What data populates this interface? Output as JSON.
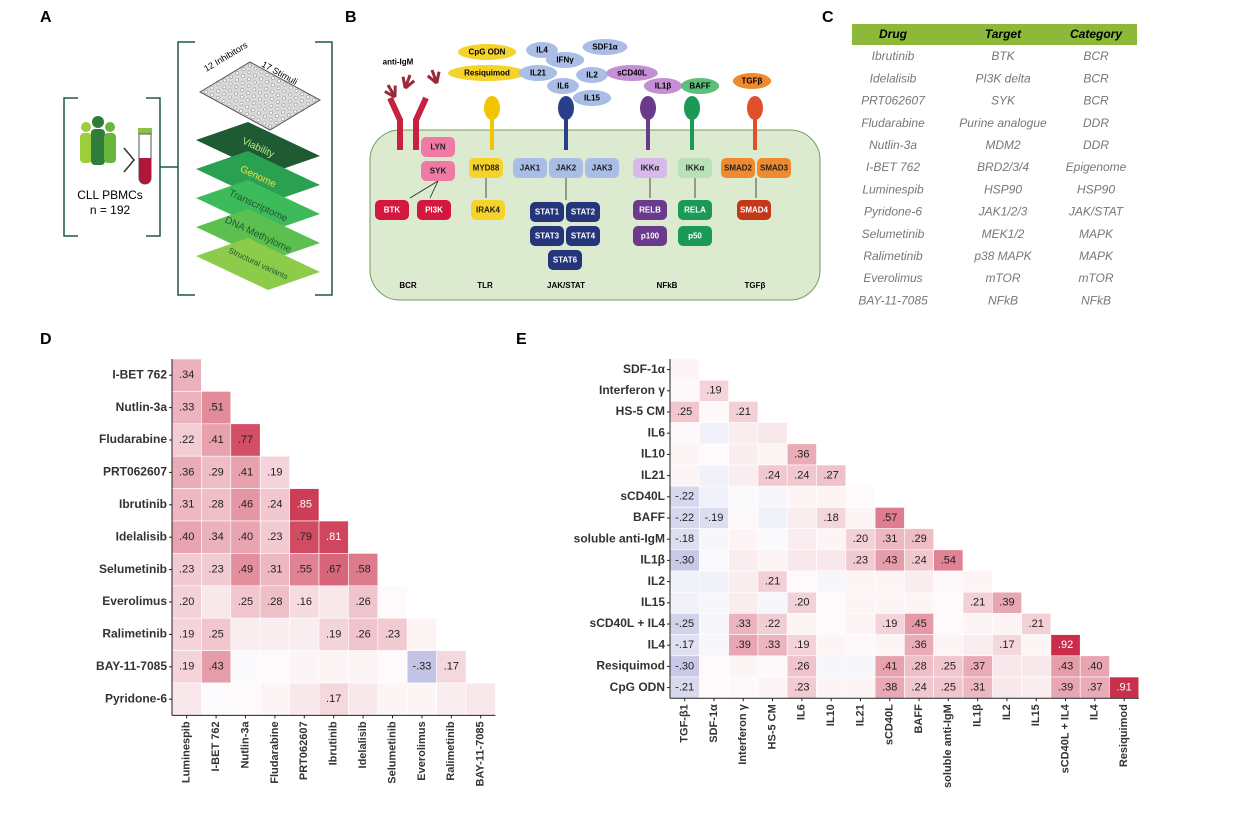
{
  "panel_a": {
    "label": "A",
    "plate_labels": [
      "12 Inhibitors",
      "17 Stimuli"
    ],
    "layers": [
      "Viability",
      "Genome",
      "Transcriptome",
      "DNA Methylome",
      "Structural variants"
    ],
    "cohort": [
      "CLL PBMCs",
      "n = 192"
    ]
  },
  "panel_b": {
    "label": "B",
    "ligands": [
      "anti-IgM",
      "CpG ODN",
      "Resiquimod",
      "IL4",
      "IFNγ",
      "SDF1α",
      "IL21",
      "IL2",
      "IL6",
      "IL15",
      "sCD40L",
      "IL1β",
      "BAFF",
      "TGFβ"
    ],
    "nodes": [
      "LYN",
      "SYK",
      "BTK",
      "PI3K",
      "MYD88",
      "IRAK4",
      "JAK1",
      "JAK2",
      "JAK3",
      "STAT1",
      "STAT2",
      "STAT3",
      "STAT4",
      "STAT6",
      "IKKα",
      "IKKα",
      "RELB",
      "p100",
      "RELA",
      "p50",
      "SMAD2",
      "SMAD3",
      "SMAD4"
    ],
    "pathways": [
      "BCR",
      "TLR",
      "JAK/STAT",
      "NFkB",
      "TGFβ"
    ]
  },
  "panel_c": {
    "label": "C",
    "header": [
      "Drug",
      "Target",
      "Category"
    ],
    "rows": [
      [
        "Ibrutinib",
        "BTK",
        "BCR"
      ],
      [
        "Idelalisib",
        "PI3K delta",
        "BCR"
      ],
      [
        "PRT062607",
        "SYK",
        "BCR"
      ],
      [
        "Fludarabine",
        "Purine analogue",
        "DDR"
      ],
      [
        "Nutlin-3a",
        "MDM2",
        "DDR"
      ],
      [
        "I-BET 762",
        "BRD2/3/4",
        "Epigenome"
      ],
      [
        "Luminespib",
        "HSP90",
        "HSP90"
      ],
      [
        "Pyridone-6",
        "JAK1/2/3",
        "JAK/STAT"
      ],
      [
        "Selumetinib",
        "MEK1/2",
        "MAPK"
      ],
      [
        "Ralimetinib",
        "p38 MAPK",
        "MAPK"
      ],
      [
        "Everolimus",
        "mTOR",
        "mTOR"
      ],
      [
        "BAY-11-7085",
        "NFkB",
        "NFkB"
      ]
    ]
  },
  "chart_data": [
    {
      "type": "heatmap",
      "panel": "D",
      "pos_color": "#c51b3a",
      "neg_color": "#4a4ab0",
      "rows": [
        "I-BET 762",
        "Nutlin-3a",
        "Fludarabine",
        "PRT062607",
        "Ibrutinib",
        "Idelalisib",
        "Selumetinib",
        "Everolimus",
        "Ralimetinib",
        "BAY-11-7085",
        "Pyridone-6"
      ],
      "columns": [
        "Luminespib",
        "I-BET 762",
        "Nutlin-3a",
        "Fludarabine",
        "PRT062607",
        "Ibrutinib",
        "Idelalisib",
        "Selumetinib",
        "Everolimus",
        "Ralimetinib",
        "BAY-11-7085"
      ],
      "values": [
        [
          0.34
        ],
        [
          0.33,
          0.51
        ],
        [
          0.22,
          0.41,
          0.77
        ],
        [
          0.36,
          0.29,
          0.41,
          0.19
        ],
        [
          0.31,
          0.28,
          0.46,
          0.24,
          0.85
        ],
        [
          0.4,
          0.34,
          0.4,
          0.23,
          0.79,
          0.81
        ],
        [
          0.23,
          0.23,
          0.49,
          0.31,
          0.55,
          0.67,
          0.58
        ],
        [
          0.2,
          0.1,
          0.25,
          0.28,
          0.16,
          0.1,
          0.26,
          0.02
        ],
        [
          0.19,
          0.25,
          0.08,
          0.08,
          0.08,
          0.19,
          0.26,
          0.23,
          0.05
        ],
        [
          0.19,
          0.43,
          -0.03,
          0.02,
          0.05,
          0.05,
          0.05,
          0.02,
          -0.33,
          0.17
        ],
        [
          0.1,
          -0.02,
          0.02,
          0.05,
          0.1,
          0.17,
          0.1,
          0.05,
          0.05,
          0.08,
          0.1
        ]
      ],
      "value_labels": [
        [
          ".34"
        ],
        [
          ".33",
          ".51"
        ],
        [
          ".22",
          ".41",
          ".77"
        ],
        [
          ".36",
          ".29",
          ".41",
          ".19"
        ],
        [
          ".31",
          ".28",
          ".46",
          ".24",
          ".85"
        ],
        [
          ".40",
          ".34",
          ".40",
          ".23",
          ".79",
          ".81"
        ],
        [
          ".23",
          ".23",
          ".49",
          ".31",
          ".55",
          ".67",
          ".58"
        ],
        [
          ".20",
          null,
          ".25",
          ".28",
          ".16",
          null,
          ".26",
          null
        ],
        [
          ".19",
          ".25",
          null,
          null,
          null,
          ".19",
          ".26",
          ".23",
          null
        ],
        [
          ".19",
          ".43",
          null,
          null,
          null,
          null,
          null,
          null,
          "-.33",
          ".17"
        ],
        [
          null,
          null,
          null,
          null,
          null,
          ".17",
          null,
          null,
          null,
          null,
          null
        ]
      ]
    },
    {
      "type": "heatmap",
      "panel": "E",
      "pos_color": "#c51b3a",
      "neg_color": "#4a4ab0",
      "rows": [
        "SDF-1α",
        "Interferon γ",
        "HS-5 CM",
        "IL6",
        "IL10",
        "IL21",
        "sCD40L",
        "BAFF",
        "soluble anti-IgM",
        "IL1β",
        "IL2",
        "IL15",
        "sCD40L + IL4",
        "IL4",
        "Resiquimod",
        "CpG ODN"
      ],
      "columns": [
        "TGF-β1",
        "SDF-1α",
        "Interferon γ",
        "HS-5 CM",
        "IL6",
        "IL10",
        "IL21",
        "sCD40L",
        "BAFF",
        "soluble anti-IgM",
        "IL1β",
        "IL2",
        "IL15",
        "sCD40L + IL4",
        "IL4",
        "Resiquimod"
      ],
      "values": [
        [
          0.05
        ],
        [
          0.03,
          0.19
        ],
        [
          0.25,
          0.03,
          0.21
        ],
        [
          0.03,
          -0.08,
          0.08,
          0.1
        ],
        [
          0.05,
          0.02,
          0.08,
          0.05,
          0.36
        ],
        [
          0.05,
          -0.08,
          0.08,
          0.24,
          0.24,
          0.27
        ],
        [
          -0.22,
          -0.08,
          -0.03,
          -0.05,
          0.05,
          0.05,
          0.02
        ],
        [
          -0.22,
          -0.19,
          0.03,
          -0.08,
          0.08,
          0.18,
          0.05,
          0.57
        ],
        [
          -0.18,
          -0.05,
          0.05,
          -0.03,
          0.08,
          0.05,
          0.2,
          0.31,
          0.29
        ],
        [
          -0.3,
          -0.03,
          0.08,
          0.05,
          0.1,
          0.1,
          0.23,
          0.43,
          0.24,
          0.54
        ],
        [
          -0.08,
          -0.08,
          0.08,
          0.21,
          0.02,
          -0.05,
          0.05,
          0.05,
          0.08,
          0.03,
          0.05
        ],
        [
          -0.08,
          -0.05,
          0.08,
          -0.05,
          0.2,
          0.02,
          0.05,
          0.05,
          0.05,
          0.02,
          0.21,
          0.39
        ],
        [
          -0.25,
          -0.05,
          0.33,
          0.22,
          0.05,
          0.02,
          0.05,
          0.19,
          0.45,
          0.02,
          0.05,
          0.05,
          0.21
        ],
        [
          -0.17,
          -0.05,
          0.39,
          0.33,
          0.19,
          0.05,
          0.03,
          0.05,
          0.36,
          0.05,
          0.08,
          0.17,
          0.05,
          0.92
        ],
        [
          -0.3,
          0.02,
          0.05,
          0.03,
          0.26,
          -0.05,
          -0.05,
          0.41,
          0.28,
          0.25,
          0.37,
          0.1,
          0.1,
          0.43,
          0.4
        ],
        [
          -0.21,
          0.02,
          0.03,
          0.05,
          0.23,
          0.05,
          0.05,
          0.38,
          0.24,
          0.25,
          0.31,
          0.1,
          0.08,
          0.39,
          0.37,
          0.91
        ]
      ],
      "value_labels": [
        [
          null
        ],
        [
          null,
          ".19"
        ],
        [
          ".25",
          null,
          ".21"
        ],
        [
          null,
          null,
          null,
          null
        ],
        [
          null,
          null,
          null,
          null,
          ".36"
        ],
        [
          null,
          null,
          null,
          ".24",
          ".24",
          ".27"
        ],
        [
          "-.22",
          null,
          null,
          null,
          null,
          null,
          null
        ],
        [
          "-.22",
          "-.19",
          null,
          null,
          null,
          ".18",
          null,
          ".57"
        ],
        [
          "-.18",
          null,
          null,
          null,
          null,
          null,
          ".20",
          ".31",
          ".29"
        ],
        [
          "-.30",
          null,
          null,
          null,
          null,
          null,
          ".23",
          ".43",
          ".24",
          ".54"
        ],
        [
          null,
          null,
          null,
          ".21",
          null,
          null,
          null,
          null,
          null,
          null,
          null
        ],
        [
          null,
          null,
          null,
          null,
          ".20",
          null,
          null,
          null,
          null,
          null,
          ".21",
          ".39"
        ],
        [
          "-.25",
          null,
          ".33",
          ".22",
          null,
          null,
          null,
          ".19",
          ".45",
          null,
          null,
          null,
          ".21"
        ],
        [
          "-.17",
          null,
          ".39",
          ".33",
          ".19",
          null,
          null,
          null,
          ".36",
          null,
          null,
          ".17",
          null,
          ".92"
        ],
        [
          "-.30",
          null,
          null,
          null,
          ".26",
          null,
          null,
          ".41",
          ".28",
          ".25",
          ".37",
          null,
          null,
          ".43",
          ".40"
        ],
        [
          "-.21",
          null,
          null,
          null,
          ".23",
          null,
          null,
          ".38",
          ".24",
          ".25",
          ".31",
          null,
          null,
          ".39",
          ".37",
          ".91"
        ]
      ]
    }
  ]
}
